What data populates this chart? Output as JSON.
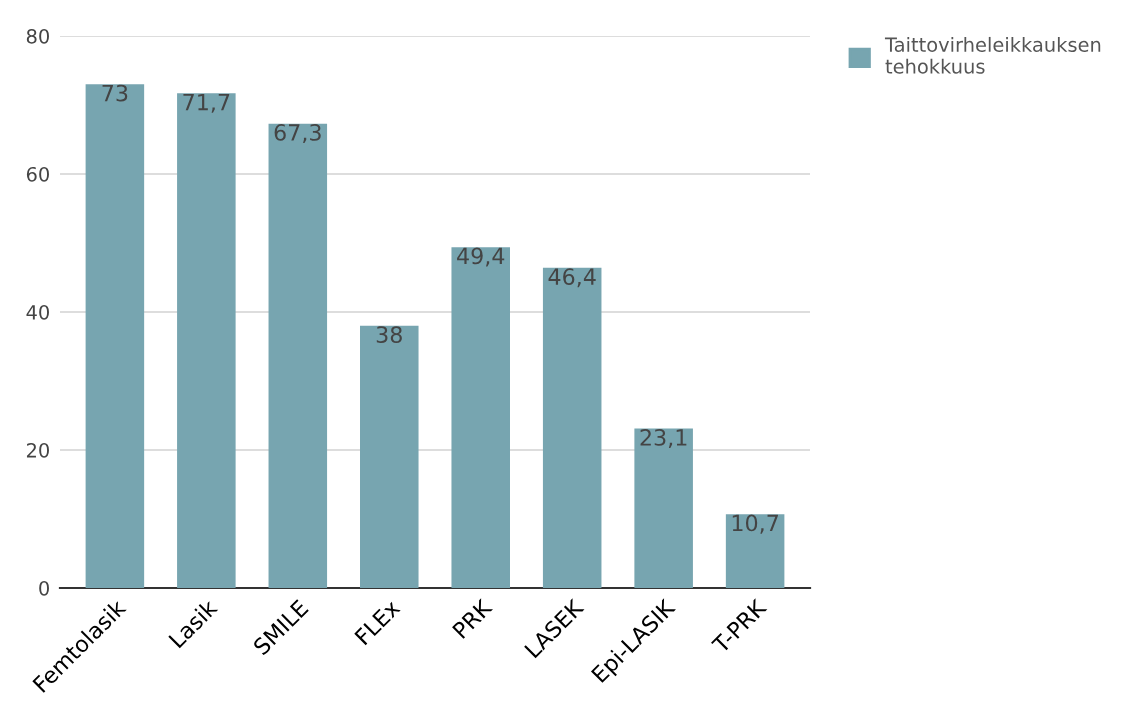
{
  "chart_data": {
    "type": "bar",
    "categories": [
      "Femtolasik",
      "Lasik",
      "SMILE",
      "FLEx",
      "PRK",
      "LASEK",
      "Epi-LASIK",
      "T-PRK"
    ],
    "series": [
      {
        "name": "Taittovirheleikkauksen tehokkuus",
        "color": "#77a5b0",
        "values": [
          73,
          71.7,
          67.3,
          38,
          49.4,
          46.4,
          23.1,
          10.7
        ],
        "value_labels": [
          "73",
          "71,7",
          "67,3",
          "38",
          "49,4",
          "46,4",
          "23,1",
          "10,7"
        ]
      }
    ],
    "ylim": [
      0,
      80
    ],
    "yticks": [
      0,
      20,
      40,
      60,
      80
    ],
    "grid": "y",
    "legend": "top right"
  }
}
